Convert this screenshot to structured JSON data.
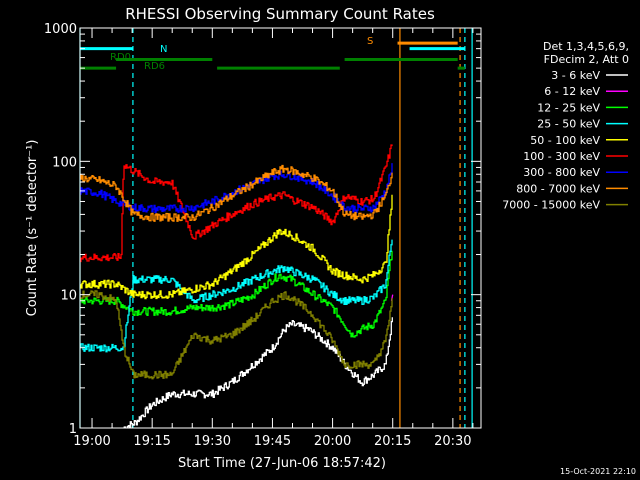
{
  "chart_data": {
    "type": "line",
    "title": "RHESSI Observing Summary Count Rates",
    "xlabel": "Start Time (27-Jun-06 18:57:42)",
    "ylabel": "Count Rate (s⁻¹ detector⁻¹)",
    "y_scale": "log",
    "ylim": [
      1,
      1000
    ],
    "xlim": [
      "18:57:42",
      "20:37:00"
    ],
    "x_ticks": [
      "19:00",
      "19:15",
      "19:30",
      "19:45",
      "20:00",
      "20:15",
      "20:30"
    ],
    "y_ticks": [
      "1",
      "10",
      "100",
      "1000"
    ],
    "footer_date": "15-Oct-2021 22:10",
    "legend": {
      "placement": "right",
      "header": [
        "Det 1,3,4,5,6,9,",
        "FDecim 2, Att 0"
      ]
    },
    "series": [
      {
        "name": "3 - 6 keV",
        "color": "#ffffff",
        "x": [
          19.13,
          19.18,
          19.25,
          19.33,
          19.5,
          19.58,
          19.67,
          19.75,
          19.8,
          19.83,
          19.9,
          20.0,
          20.05,
          20.12,
          20.17,
          20.22,
          20.25
        ],
        "values": [
          1,
          1.1,
          1.5,
          1.8,
          1.8,
          2.2,
          3,
          4,
          5.5,
          6,
          5.5,
          4,
          3,
          2.2,
          2.5,
          3,
          7
        ]
      },
      {
        "name": "6 - 12 keV",
        "color": "#ff00ff",
        "x": [
          20.245,
          20.25
        ],
        "values": [
          9,
          10
        ]
      },
      {
        "name": "12 - 25 keV",
        "color": "#00ff00",
        "x": [
          18.95,
          19.03,
          19.1,
          19.17,
          19.25,
          19.33,
          19.42,
          19.5,
          19.58,
          19.67,
          19.75,
          19.78,
          19.83,
          19.92,
          20.0,
          20.05,
          20.08,
          20.12,
          20.17,
          20.22,
          20.25
        ],
        "values": [
          9,
          9,
          9,
          7.5,
          7.5,
          7.5,
          8,
          8,
          8.5,
          10,
          13,
          14,
          13,
          10,
          8,
          6,
          5,
          5.5,
          6,
          9,
          25
        ]
      },
      {
        "name": "25 - 50 keV",
        "color": "#00ffff",
        "x": [
          18.95,
          19.03,
          19.1,
          19.13,
          19.17,
          19.25,
          19.33,
          19.42,
          19.5,
          19.58,
          19.67,
          19.75,
          19.8,
          19.83,
          19.92,
          20.0,
          20.05,
          20.12,
          20.17,
          20.22,
          20.25
        ],
        "values": [
          4,
          4,
          4,
          4,
          13,
          13,
          13,
          9,
          10,
          11,
          13,
          15,
          16,
          15,
          13,
          10,
          9,
          9,
          9.5,
          12,
          30
        ]
      },
      {
        "name": "50 - 100 keV",
        "color": "#ffff00",
        "x": [
          18.95,
          19.03,
          19.1,
          19.17,
          19.25,
          19.33,
          19.42,
          19.5,
          19.58,
          19.67,
          19.75,
          19.78,
          19.83,
          19.92,
          20.0,
          20.05,
          20.12,
          20.17,
          20.22,
          20.25
        ],
        "values": [
          12,
          12,
          12,
          10,
          10,
          10,
          11,
          12,
          15,
          20,
          27,
          30,
          28,
          22,
          15,
          14,
          13,
          14,
          17,
          60
        ]
      },
      {
        "name": "100 - 300 keV",
        "color": "#ff0000",
        "x": [
          18.95,
          19.03,
          19.1,
          19.12,
          19.13,
          19.17,
          19.25,
          19.33,
          19.42,
          19.5,
          19.58,
          19.67,
          19.75,
          19.8,
          19.83,
          19.92,
          20.0,
          20.05,
          20.12,
          20.17,
          20.22,
          20.25
        ],
        "values": [
          19,
          19,
          19,
          19,
          95,
          85,
          70,
          70,
          27,
          33,
          40,
          48,
          54,
          56,
          52,
          45,
          35,
          55,
          50,
          52,
          90,
          140
        ]
      },
      {
        "name": "300 - 800 keV",
        "color": "#0000ff",
        "x": [
          18.95,
          19.03,
          19.1,
          19.17,
          19.25,
          19.33,
          19.42,
          19.5,
          19.58,
          19.67,
          19.75,
          19.8,
          19.83,
          19.92,
          20.0,
          20.05,
          20.12,
          20.17,
          20.22,
          20.25
        ],
        "values": [
          60,
          58,
          50,
          45,
          44,
          44,
          45,
          50,
          58,
          68,
          78,
          80,
          78,
          70,
          55,
          45,
          44,
          45,
          60,
          95
        ]
      },
      {
        "name": "800 - 7000 keV",
        "color": "#ff8c00",
        "x": [
          18.95,
          19.03,
          19.1,
          19.17,
          19.25,
          19.33,
          19.42,
          19.5,
          19.58,
          19.67,
          19.75,
          19.8,
          19.83,
          19.92,
          20.0,
          20.05,
          20.12,
          20.17,
          20.22,
          20.25
        ],
        "values": [
          75,
          72,
          65,
          40,
          38,
          38,
          38,
          45,
          55,
          68,
          82,
          88,
          85,
          75,
          60,
          40,
          38,
          40,
          55,
          85
        ]
      },
      {
        "name": "7000 - 15000 keV",
        "color": "#808000",
        "x": [
          18.95,
          19.03,
          19.1,
          19.13,
          19.17,
          19.25,
          19.33,
          19.42,
          19.5,
          19.58,
          19.67,
          19.75,
          19.8,
          19.83,
          19.92,
          20.0,
          20.05,
          20.12,
          20.17,
          20.22,
          20.25
        ],
        "values": [
          10,
          10,
          9,
          4,
          2.5,
          2.5,
          2.5,
          5,
          4.5,
          5,
          6.5,
          9,
          10,
          9.5,
          7,
          4.5,
          3,
          3,
          3,
          4.5,
          10
        ]
      }
    ],
    "annotations": [
      {
        "label": "RD0",
        "color": "#008000"
      },
      {
        "label": "RD6",
        "color": "#008000"
      },
      {
        "label": "N",
        "color": "#00ffff"
      },
      {
        "label": "S",
        "color": "#ff8c00"
      }
    ],
    "state_bars": [
      {
        "name": "N",
        "color": "#00ffff",
        "level": 700,
        "spans": [
          [
            18.95,
            19.17
          ],
          [
            20.32,
            20.55
          ]
        ]
      },
      {
        "name": "S",
        "color": "#ff8c00",
        "level": 770,
        "spans": [
          [
            20.27,
            20.52
          ]
        ]
      },
      {
        "name": "RD6",
        "color": "#008000",
        "level": 580,
        "spans": [
          [
            19.1,
            19.5
          ],
          [
            20.05,
            20.52
          ]
        ]
      },
      {
        "name": "RD0",
        "color": "#008000",
        "level": 500,
        "spans": [
          [
            18.95,
            19.1
          ],
          [
            19.52,
            20.03
          ],
          [
            20.52,
            20.55
          ]
        ]
      }
    ],
    "event_lines": [
      {
        "name": "N",
        "color": "#00ffff",
        "x": [
          18.95,
          20.58
        ],
        "style": "solid"
      },
      {
        "name": "N",
        "color": "#00ffff",
        "x": [
          19.17,
          20.55
        ],
        "style": "dashed"
      },
      {
        "name": "S",
        "color": "#ff8c00",
        "x": [
          20.28
        ],
        "style": "solid"
      },
      {
        "name": "S",
        "color": "#ff8c00",
        "x": [
          20.53
        ],
        "style": "dashed"
      }
    ]
  }
}
